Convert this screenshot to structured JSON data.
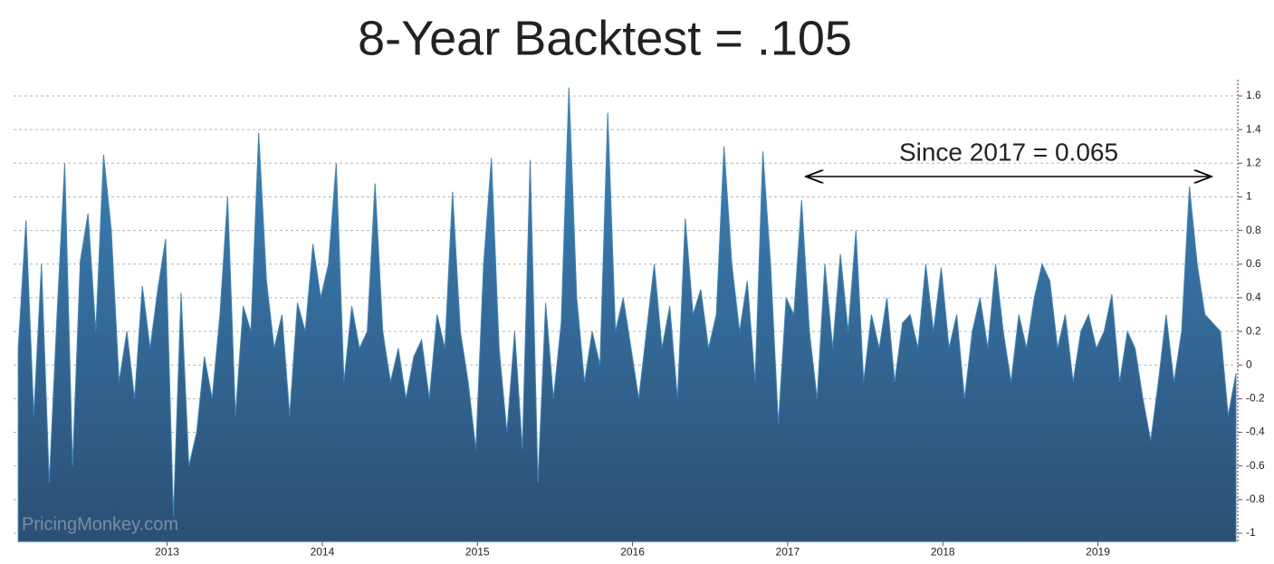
{
  "chart_data": {
    "type": "area",
    "title": "8-Year Backtest = .105",
    "annotation": "Since 2017 = 0.065",
    "watermark": "PricingMonkey.com",
    "color": "#3a86be",
    "grid": true,
    "xlim": [
      2012.01,
      2019.89
    ],
    "xticks": [
      2013,
      2014,
      2015,
      2016,
      2017,
      2018,
      2019
    ],
    "ylim": [
      -1.05,
      1.72
    ],
    "yticks": [
      -1,
      -0.8,
      -0.6,
      -0.4,
      -0.2,
      0,
      0.2,
      0.4,
      0.6,
      0.8,
      1,
      1.2,
      1.4,
      1.6
    ],
    "x": [
      2012.04,
      2012.09,
      2012.14,
      2012.19,
      2012.24,
      2012.29,
      2012.34,
      2012.39,
      2012.44,
      2012.49,
      2012.54,
      2012.59,
      2012.64,
      2012.69,
      2012.74,
      2012.79,
      2012.84,
      2012.89,
      2012.94,
      2012.99,
      2013.04,
      2013.09,
      2013.14,
      2013.19,
      2013.24,
      2013.29,
      2013.34,
      2013.39,
      2013.44,
      2013.49,
      2013.54,
      2013.59,
      2013.64,
      2013.69,
      2013.74,
      2013.79,
      2013.84,
      2013.89,
      2013.94,
      2013.99,
      2014.04,
      2014.09,
      2014.14,
      2014.19,
      2014.24,
      2014.29,
      2014.34,
      2014.39,
      2014.44,
      2014.49,
      2014.54,
      2014.59,
      2014.64,
      2014.69,
      2014.74,
      2014.79,
      2014.84,
      2014.89,
      2014.94,
      2014.99,
      2015.04,
      2015.09,
      2015.14,
      2015.19,
      2015.24,
      2015.29,
      2015.34,
      2015.39,
      2015.44,
      2015.49,
      2015.54,
      2015.59,
      2015.64,
      2015.69,
      2015.74,
      2015.79,
      2015.84,
      2015.89,
      2015.94,
      2015.99,
      2016.04,
      2016.09,
      2016.14,
      2016.19,
      2016.24,
      2016.29,
      2016.34,
      2016.39,
      2016.44,
      2016.49,
      2016.54,
      2016.59,
      2016.64,
      2016.69,
      2016.74,
      2016.79,
      2016.84,
      2016.89,
      2016.94,
      2016.99,
      2017.04,
      2017.09,
      2017.14,
      2017.19,
      2017.24,
      2017.29,
      2017.34,
      2017.39,
      2017.44,
      2017.49,
      2017.54,
      2017.59,
      2017.64,
      2017.69,
      2017.74,
      2017.79,
      2017.84,
      2017.89,
      2017.94,
      2017.99,
      2018.04,
      2018.09,
      2018.14,
      2018.19,
      2018.24,
      2018.29,
      2018.34,
      2018.39,
      2018.44,
      2018.49,
      2018.54,
      2018.59,
      2018.64,
      2018.69,
      2018.74,
      2018.79,
      2018.84,
      2018.89,
      2018.94,
      2018.99,
      2019.04,
      2019.09,
      2019.14,
      2019.19,
      2019.24,
      2019.29,
      2019.34,
      2019.39,
      2019.44,
      2019.49,
      2019.54,
      2019.59,
      2019.64,
      2019.69,
      2019.74,
      2019.79,
      2019.84,
      2019.89
    ],
    "values": [
      0.1,
      0.86,
      -0.3,
      0.6,
      -0.7,
      0.3,
      1.2,
      -0.6,
      0.62,
      0.9,
      0.2,
      1.25,
      0.8,
      -0.1,
      0.2,
      -0.2,
      0.47,
      0.1,
      0.45,
      0.75,
      -0.9,
      0.43,
      -0.6,
      -0.4,
      0.05,
      -0.2,
      0.3,
      1.0,
      -0.3,
      0.35,
      0.2,
      1.38,
      0.5,
      0.1,
      0.3,
      -0.3,
      0.37,
      0.2,
      0.72,
      0.4,
      0.6,
      1.2,
      -0.1,
      0.35,
      0.1,
      0.2,
      1.08,
      0.2,
      -0.1,
      0.1,
      -0.2,
      0.05,
      0.15,
      -0.2,
      0.3,
      0.1,
      1.03,
      0.2,
      -0.1,
      -0.5,
      0.6,
      1.23,
      0.1,
      -0.4,
      0.2,
      -0.5,
      1.22,
      -0.7,
      0.37,
      -0.2,
      0.25,
      1.65,
      0.4,
      -0.1,
      0.2,
      0.0,
      1.5,
      0.2,
      0.4,
      0.1,
      -0.2,
      0.2,
      0.6,
      0.1,
      0.35,
      -0.2,
      0.87,
      0.3,
      0.45,
      0.1,
      0.3,
      1.3,
      0.6,
      0.2,
      0.5,
      -0.1,
      1.27,
      0.6,
      -0.35,
      0.4,
      0.3,
      0.98,
      0.2,
      -0.2,
      0.6,
      0.1,
      0.66,
      0.2,
      0.8,
      -0.1,
      0.3,
      0.1,
      0.4,
      -0.1,
      0.25,
      0.3,
      0.1,
      0.6,
      0.2,
      0.58,
      0.1,
      0.3,
      -0.2,
      0.2,
      0.4,
      0.1,
      0.6,
      0.2,
      -0.1,
      0.3,
      0.1,
      0.4,
      0.6,
      0.5,
      0.1,
      0.3,
      -0.1,
      0.2,
      0.3,
      0.1,
      0.2,
      0.42,
      -0.1,
      0.2,
      0.1,
      -0.2,
      -0.45,
      -0.1,
      0.3,
      -0.1,
      0.2,
      1.06,
      0.6,
      0.3,
      0.25,
      0.2,
      -0.3,
      -0.05
    ]
  }
}
